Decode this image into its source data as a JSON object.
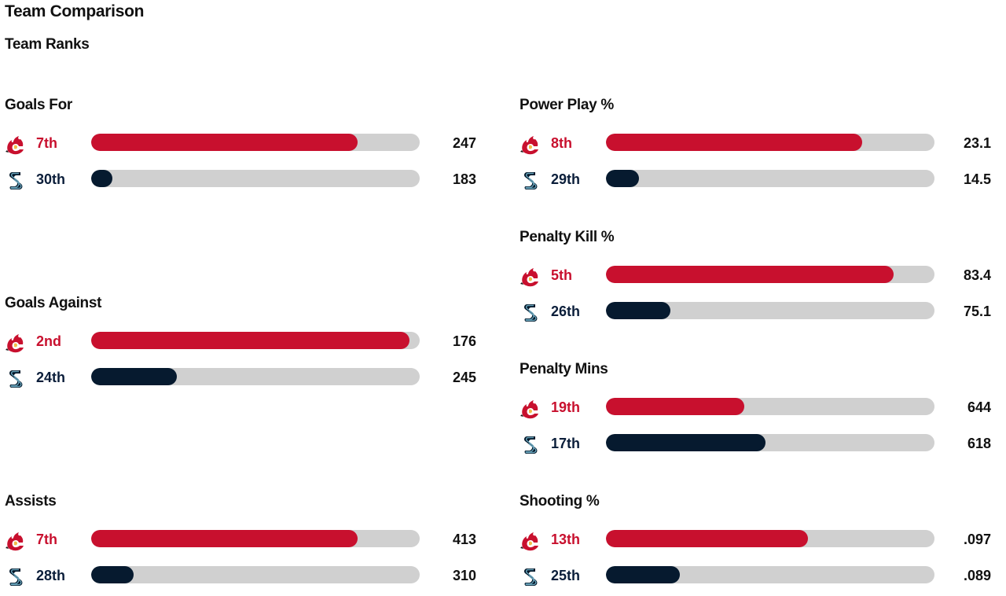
{
  "page": {
    "title": "Team Comparison",
    "subtitle": "Team Ranks"
  },
  "colors": {
    "calgary": "#c8102e",
    "seattle": "#061a2f",
    "track": "#d0d0d0"
  },
  "icons": {
    "calgary": "calgary-flames-logo-icon",
    "seattle": "seattle-kraken-logo-icon"
  },
  "stats": [
    {
      "title": "Goals For",
      "teams": [
        {
          "team": "calgary",
          "rank": "7th",
          "value": "247",
          "fill": 0.81
        },
        {
          "team": "seattle",
          "rank": "30th",
          "value": "183",
          "fill": 0.065
        }
      ]
    },
    {
      "title": "Goals Against",
      "teams": [
        {
          "team": "calgary",
          "rank": "2nd",
          "value": "176",
          "fill": 0.97
        },
        {
          "team": "seattle",
          "rank": "24th",
          "value": "245",
          "fill": 0.26
        }
      ]
    },
    {
      "title": "Assists",
      "teams": [
        {
          "team": "calgary",
          "rank": "7th",
          "value": "413",
          "fill": 0.81
        },
        {
          "team": "seattle",
          "rank": "28th",
          "value": "310",
          "fill": 0.13
        }
      ]
    },
    {
      "title": "Power Play %",
      "teams": [
        {
          "team": "calgary",
          "rank": "8th",
          "value": "23.1",
          "fill": 0.78
        },
        {
          "team": "seattle",
          "rank": "29th",
          "value": "14.5",
          "fill": 0.1
        }
      ]
    },
    {
      "title": "Penalty Kill %",
      "teams": [
        {
          "team": "calgary",
          "rank": "5th",
          "value": "83.4",
          "fill": 0.875
        },
        {
          "team": "seattle",
          "rank": "26th",
          "value": "75.1",
          "fill": 0.195
        }
      ]
    },
    {
      "title": "Penalty Mins",
      "teams": [
        {
          "team": "calgary",
          "rank": "19th",
          "value": "644",
          "fill": 0.42
        },
        {
          "team": "seattle",
          "rank": "17th",
          "value": "618",
          "fill": 0.485
        }
      ]
    },
    {
      "title": "Shooting %",
      "teams": [
        {
          "team": "calgary",
          "rank": "13th",
          "value": ".097",
          "fill": 0.615
        },
        {
          "team": "seattle",
          "rank": "25th",
          "value": ".089",
          "fill": 0.225
        }
      ]
    }
  ]
}
